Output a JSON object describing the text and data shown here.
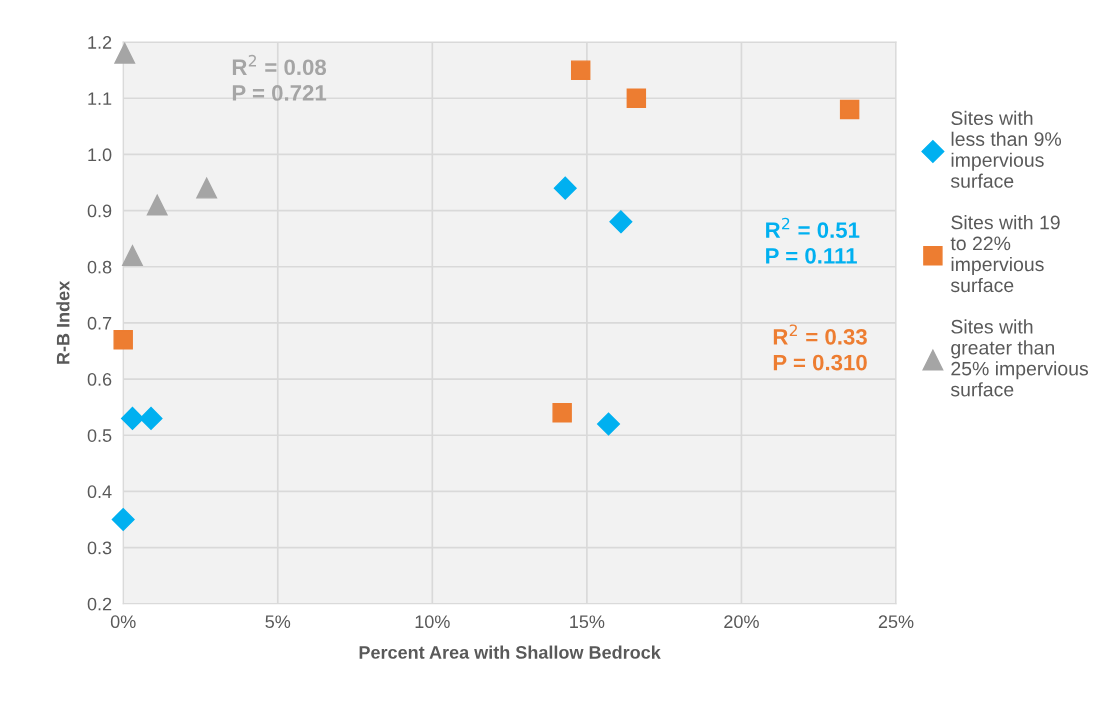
{
  "chart_data": {
    "type": "scatter",
    "xlabel": "Percent Area with Shallow Bedrock",
    "ylabel": "R-B Index",
    "xlim": [
      0,
      25
    ],
    "xticks": [
      {
        "value": 0,
        "label": "0%"
      },
      {
        "value": 5,
        "label": "5%"
      },
      {
        "value": 10,
        "label": "10%"
      },
      {
        "value": 15,
        "label": "15%"
      },
      {
        "value": 20,
        "label": "20%"
      },
      {
        "value": 25,
        "label": "25%"
      }
    ],
    "ylim": [
      0.2,
      1.2
    ],
    "yticks": [
      {
        "value": 0.2,
        "label": "0.2"
      },
      {
        "value": 0.3,
        "label": "0.3"
      },
      {
        "value": 0.4,
        "label": "0.4"
      },
      {
        "value": 0.5,
        "label": "0.5"
      },
      {
        "value": 0.6,
        "label": "0.6"
      },
      {
        "value": 0.7,
        "label": "0.7"
      },
      {
        "value": 0.8,
        "label": "0.8"
      },
      {
        "value": 0.9,
        "label": "0.9"
      },
      {
        "value": 1.0,
        "label": "1.0"
      },
      {
        "value": 1.1,
        "label": "1.1"
      },
      {
        "value": 1.2,
        "label": "1.2"
      }
    ],
    "grid": true,
    "legend": "right",
    "series": [
      {
        "name": "Sites with less than 9% impervious surface",
        "color": "#00b0f0",
        "marker": "diamond",
        "x": [
          0,
          0.3,
          0.9,
          14.3,
          16.1,
          15.7
        ],
        "values": [
          0.35,
          0.53,
          0.53,
          0.94,
          0.88,
          0.52
        ]
      },
      {
        "name": "Sites with 19 to 22% impervious surface",
        "color": "#ed7d31",
        "marker": "square",
        "x": [
          0,
          14.8,
          16.6,
          23.5,
          14.2
        ],
        "values": [
          0.67,
          1.15,
          1.1,
          1.08,
          0.54
        ]
      },
      {
        "name": "Sites with greater than 25% impervious surface",
        "color": "#a5a5a5",
        "marker": "triangle",
        "x": [
          0.05,
          0.3,
          1.1,
          2.7
        ],
        "values": [
          1.18,
          0.82,
          0.91,
          0.94
        ]
      }
    ],
    "annotations": [
      "R$^{2}$ = 0.51\nP = 0.111",
      "R$^{2}$ = 0.33\nP = 0.310",
      "R$^{2}$ = 0.08\nP = 0.721"
    ]
  }
}
